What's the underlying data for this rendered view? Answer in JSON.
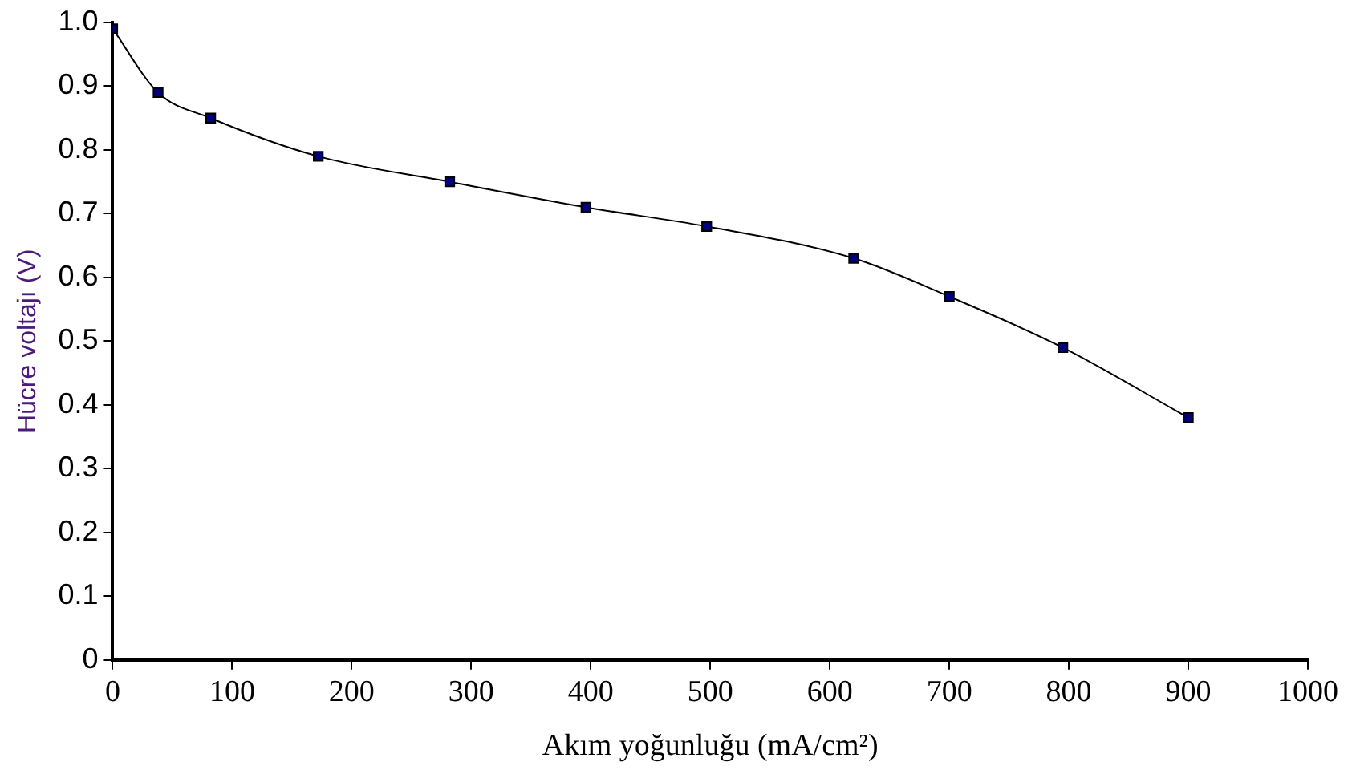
{
  "chart_data": {
    "type": "line",
    "xlabel": "Akım yoğunluğu (mA/cm²)",
    "ylabel": "Hücre voltajı (V)",
    "x": [
      0,
      38,
      82,
      172,
      282,
      396,
      497,
      620,
      700,
      795,
      900
    ],
    "series": [
      {
        "color": "#000080",
        "values": [
          0.99,
          0.89,
          0.85,
          0.79,
          0.75,
          0.71,
          0.68,
          0.63,
          0.57,
          0.49,
          0.38
        ]
      }
    ],
    "xlim": [
      0,
      1000
    ],
    "xticks": [
      0,
      100,
      200,
      300,
      400,
      500,
      600,
      700,
      800,
      900,
      1000
    ],
    "ylim": [
      0,
      1
    ],
    "yticks": [
      0,
      0.1,
      0.2,
      0.3,
      0.4,
      0.5,
      0.6,
      0.7,
      0.8,
      0.9,
      {
        "value": 1,
        "label": "1.0"
      }
    ],
    "grid": false,
    "legend": false,
    "marker": "square",
    "line_style": "solid"
  }
}
